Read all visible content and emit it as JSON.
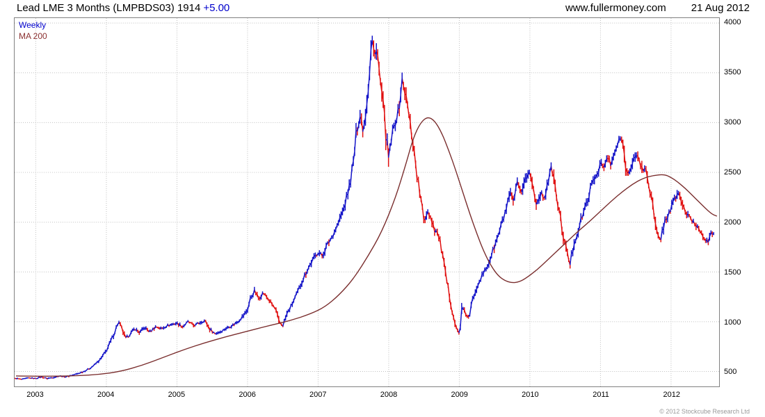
{
  "header": {
    "title": "Lead LME 3 Months (LMPBDS03) 1914",
    "change": "+5.00",
    "site": "www.fullermoney.com",
    "date": "21 Aug 2012"
  },
  "legend": {
    "weekly": "Weekly",
    "ma": "MA 200"
  },
  "footer": {
    "copyright": "© 2012 Stockcube Research Ltd"
  },
  "colors": {
    "up": "#1414c8",
    "down": "#e01010",
    "ma": "#7a2e2e",
    "grid": "#bfbfbf",
    "border": "#808080",
    "change_text": "#0000cc"
  },
  "chart_data": {
    "type": "line",
    "title": "Lead LME 3 Months (LMPBDS03)",
    "last_price": 1914,
    "change": 5.0,
    "x_range": [
      2002.7,
      2012.68
    ],
    "y_range": [
      350,
      4050
    ],
    "y_ticks": [
      500,
      1000,
      1500,
      2000,
      2500,
      3000,
      3500,
      4000
    ],
    "x_ticks": [
      2003,
      2004,
      2005,
      2006,
      2007,
      2008,
      2009,
      2010,
      2011,
      2012
    ],
    "grid": true,
    "legend_position": "top-left",
    "series": [
      {
        "name": "Weekly",
        "style": "weekly-bars",
        "up_color": "#1414c8",
        "down_color": "#e01010",
        "points": [
          [
            2002.72,
            430
          ],
          [
            2002.8,
            420
          ],
          [
            2002.9,
            435
          ],
          [
            2003.0,
            430
          ],
          [
            2003.08,
            445
          ],
          [
            2003.16,
            430
          ],
          [
            2003.25,
            440
          ],
          [
            2003.33,
            455
          ],
          [
            2003.42,
            445
          ],
          [
            2003.5,
            460
          ],
          [
            2003.58,
            475
          ],
          [
            2003.66,
            495
          ],
          [
            2003.75,
            525
          ],
          [
            2003.83,
            565
          ],
          [
            2003.92,
            625
          ],
          [
            2004.0,
            710
          ],
          [
            2004.06,
            800
          ],
          [
            2004.12,
            900
          ],
          [
            2004.17,
            1000
          ],
          [
            2004.22,
            930
          ],
          [
            2004.27,
            830
          ],
          [
            2004.33,
            870
          ],
          [
            2004.4,
            930
          ],
          [
            2004.47,
            890
          ],
          [
            2004.54,
            940
          ],
          [
            2004.62,
            900
          ],
          [
            2004.7,
            950
          ],
          [
            2004.78,
            930
          ],
          [
            2004.86,
            960
          ],
          [
            2004.94,
            975
          ],
          [
            2005.0,
            985
          ],
          [
            2005.08,
            950
          ],
          [
            2005.16,
            1000
          ],
          [
            2005.24,
            960
          ],
          [
            2005.32,
            990
          ],
          [
            2005.4,
            1010
          ],
          [
            2005.46,
            930
          ],
          [
            2005.54,
            880
          ],
          [
            2005.62,
            900
          ],
          [
            2005.7,
            935
          ],
          [
            2005.78,
            960
          ],
          [
            2005.86,
            1000
          ],
          [
            2005.94,
            1060
          ],
          [
            2006.0,
            1120
          ],
          [
            2006.04,
            1230
          ],
          [
            2006.1,
            1310
          ],
          [
            2006.16,
            1230
          ],
          [
            2006.22,
            1290
          ],
          [
            2006.28,
            1240
          ],
          [
            2006.34,
            1180
          ],
          [
            2006.4,
            1120
          ],
          [
            2006.44,
            1000
          ],
          [
            2006.5,
            960
          ],
          [
            2006.56,
            1080
          ],
          [
            2006.62,
            1160
          ],
          [
            2006.7,
            1280
          ],
          [
            2006.78,
            1420
          ],
          [
            2006.86,
            1540
          ],
          [
            2006.94,
            1640
          ],
          [
            2007.0,
            1700
          ],
          [
            2007.06,
            1660
          ],
          [
            2007.12,
            1760
          ],
          [
            2007.2,
            1860
          ],
          [
            2007.28,
            1980
          ],
          [
            2007.36,
            2130
          ],
          [
            2007.44,
            2350
          ],
          [
            2007.5,
            2600
          ],
          [
            2007.55,
            2950
          ],
          [
            2007.6,
            3080
          ],
          [
            2007.64,
            2920
          ],
          [
            2007.68,
            3150
          ],
          [
            2007.72,
            3450
          ],
          [
            2007.76,
            3850
          ],
          [
            2007.8,
            3650
          ],
          [
            2007.83,
            3800
          ],
          [
            2007.87,
            3450
          ],
          [
            2007.91,
            3250
          ],
          [
            2007.95,
            2950
          ],
          [
            2008.0,
            2620
          ],
          [
            2008.04,
            2850
          ],
          [
            2008.09,
            3000
          ],
          [
            2008.14,
            3120
          ],
          [
            2008.19,
            3420
          ],
          [
            2008.24,
            3280
          ],
          [
            2008.29,
            3050
          ],
          [
            2008.34,
            2820
          ],
          [
            2008.4,
            2480
          ],
          [
            2008.45,
            2250
          ],
          [
            2008.5,
            2000
          ],
          [
            2008.55,
            2120
          ],
          [
            2008.6,
            2040
          ],
          [
            2008.65,
            1930
          ],
          [
            2008.7,
            1880
          ],
          [
            2008.75,
            1720
          ],
          [
            2008.8,
            1480
          ],
          [
            2008.85,
            1300
          ],
          [
            2008.9,
            1120
          ],
          [
            2008.95,
            940
          ],
          [
            2009.0,
            880
          ],
          [
            2009.04,
            1140
          ],
          [
            2009.09,
            1080
          ],
          [
            2009.14,
            1030
          ],
          [
            2009.19,
            1230
          ],
          [
            2009.26,
            1380
          ],
          [
            2009.33,
            1470
          ],
          [
            2009.4,
            1560
          ],
          [
            2009.47,
            1700
          ],
          [
            2009.54,
            1840
          ],
          [
            2009.6,
            1980
          ],
          [
            2009.66,
            2120
          ],
          [
            2009.72,
            2280
          ],
          [
            2009.77,
            2200
          ],
          [
            2009.82,
            2380
          ],
          [
            2009.87,
            2280
          ],
          [
            2009.92,
            2420
          ],
          [
            2010.0,
            2500
          ],
          [
            2010.05,
            2330
          ],
          [
            2010.1,
            2180
          ],
          [
            2010.15,
            2300
          ],
          [
            2010.2,
            2240
          ],
          [
            2010.26,
            2420
          ],
          [
            2010.31,
            2550
          ],
          [
            2010.36,
            2330
          ],
          [
            2010.42,
            2080
          ],
          [
            2010.47,
            1880
          ],
          [
            2010.52,
            1700
          ],
          [
            2010.57,
            1580
          ],
          [
            2010.62,
            1780
          ],
          [
            2010.68,
            1900
          ],
          [
            2010.74,
            2060
          ],
          [
            2010.8,
            2180
          ],
          [
            2010.85,
            2320
          ],
          [
            2010.9,
            2420
          ],
          [
            2010.95,
            2480
          ],
          [
            2011.0,
            2600
          ],
          [
            2011.05,
            2540
          ],
          [
            2011.1,
            2660
          ],
          [
            2011.15,
            2560
          ],
          [
            2011.2,
            2700
          ],
          [
            2011.25,
            2790
          ],
          [
            2011.3,
            2860
          ],
          [
            2011.35,
            2600
          ],
          [
            2011.4,
            2480
          ],
          [
            2011.45,
            2560
          ],
          [
            2011.5,
            2700
          ],
          [
            2011.55,
            2620
          ],
          [
            2011.6,
            2500
          ],
          [
            2011.64,
            2560
          ],
          [
            2011.68,
            2400
          ],
          [
            2011.72,
            2250
          ],
          [
            2011.76,
            2050
          ],
          [
            2011.8,
            1870
          ],
          [
            2011.85,
            1820
          ],
          [
            2011.9,
            1990
          ],
          [
            2011.95,
            2060
          ],
          [
            2012.0,
            2140
          ],
          [
            2012.05,
            2230
          ],
          [
            2012.1,
            2300
          ],
          [
            2012.16,
            2180
          ],
          [
            2012.22,
            2080
          ],
          [
            2012.28,
            2030
          ],
          [
            2012.34,
            1980
          ],
          [
            2012.4,
            1930
          ],
          [
            2012.46,
            1860
          ],
          [
            2012.52,
            1790
          ],
          [
            2012.57,
            1880
          ],
          [
            2012.62,
            1914
          ]
        ]
      },
      {
        "name": "MA 200",
        "style": "line",
        "color": "#7a2e2e",
        "points": [
          [
            2002.72,
            455
          ],
          [
            2003.0,
            452
          ],
          [
            2003.3,
            452
          ],
          [
            2003.6,
            458
          ],
          [
            2003.9,
            470
          ],
          [
            2004.2,
            500
          ],
          [
            2004.5,
            560
          ],
          [
            2004.8,
            640
          ],
          [
            2005.1,
            720
          ],
          [
            2005.4,
            790
          ],
          [
            2005.7,
            850
          ],
          [
            2006.0,
            905
          ],
          [
            2006.3,
            960
          ],
          [
            2006.6,
            1010
          ],
          [
            2006.9,
            1080
          ],
          [
            2007.1,
            1150
          ],
          [
            2007.3,
            1270
          ],
          [
            2007.5,
            1430
          ],
          [
            2007.7,
            1650
          ],
          [
            2007.9,
            1900
          ],
          [
            2008.1,
            2250
          ],
          [
            2008.25,
            2600
          ],
          [
            2008.35,
            2850
          ],
          [
            2008.45,
            3000
          ],
          [
            2008.55,
            3060
          ],
          [
            2008.65,
            3020
          ],
          [
            2008.75,
            2900
          ],
          [
            2008.85,
            2720
          ],
          [
            2008.95,
            2520
          ],
          [
            2009.05,
            2300
          ],
          [
            2009.15,
            2080
          ],
          [
            2009.25,
            1880
          ],
          [
            2009.35,
            1700
          ],
          [
            2009.45,
            1560
          ],
          [
            2009.55,
            1460
          ],
          [
            2009.65,
            1410
          ],
          [
            2009.75,
            1390
          ],
          [
            2009.85,
            1400
          ],
          [
            2009.95,
            1440
          ],
          [
            2010.1,
            1520
          ],
          [
            2010.25,
            1620
          ],
          [
            2010.4,
            1720
          ],
          [
            2010.55,
            1820
          ],
          [
            2010.7,
            1920
          ],
          [
            2010.85,
            2010
          ],
          [
            2011.0,
            2110
          ],
          [
            2011.15,
            2210
          ],
          [
            2011.3,
            2300
          ],
          [
            2011.45,
            2380
          ],
          [
            2011.6,
            2440
          ],
          [
            2011.75,
            2470
          ],
          [
            2011.9,
            2480
          ],
          [
            2012.0,
            2450
          ],
          [
            2012.1,
            2400
          ],
          [
            2012.2,
            2340
          ],
          [
            2012.3,
            2270
          ],
          [
            2012.4,
            2200
          ],
          [
            2012.5,
            2130
          ],
          [
            2012.58,
            2080
          ],
          [
            2012.65,
            2060
          ]
        ]
      }
    ]
  }
}
